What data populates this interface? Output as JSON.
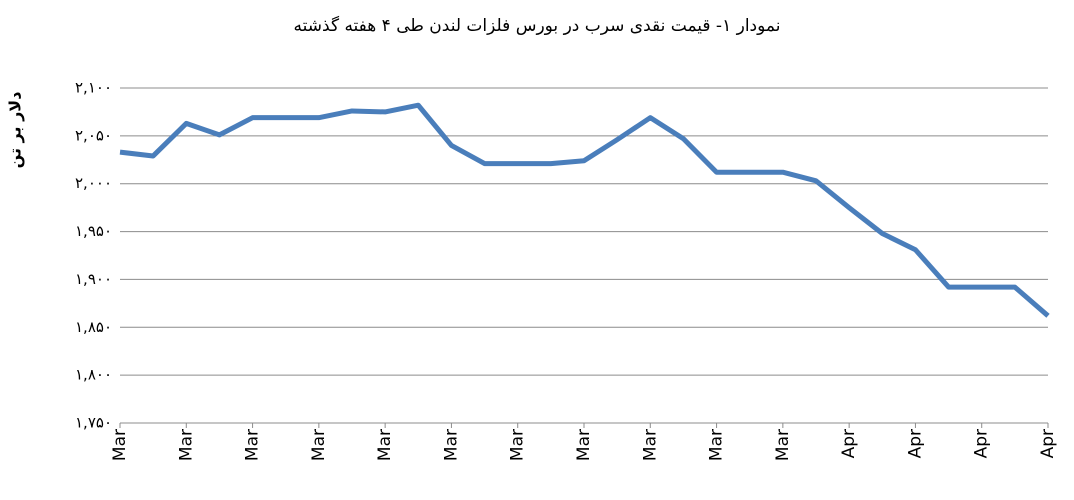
{
  "chart_data": {
    "type": "line",
    "title": "نمودار ۱- قیمت نقدی سرب  در بورس فلزات لندن طی ۴ هفته گذشته",
    "y_label": "دلار بر تن",
    "categories": [
      "Mar",
      null,
      "Mar",
      null,
      "Mar",
      null,
      "Mar",
      null,
      "Mar",
      null,
      "Mar",
      null,
      "Mar",
      null,
      "Mar",
      null,
      "Mar",
      null,
      "Mar",
      null,
      "Mar",
      null,
      "Apr",
      null,
      "Apr",
      null,
      "Apr",
      null,
      "Apr"
    ],
    "series": [
      {
        "name": "سرب",
        "color": "#4a7ebb",
        "values": [
          2033,
          2029,
          2063,
          2051,
          2069,
          2069,
          2069,
          2076,
          2075,
          2082,
          2040,
          2021,
          2021,
          2021,
          2024,
          2046,
          2069,
          2047,
          2012,
          2012,
          2012,
          2003,
          1975,
          1948,
          1931,
          1892,
          1892,
          1892,
          1862
        ]
      }
    ],
    "ylim": [
      1750,
      2100
    ],
    "yticks": [
      {
        "value": 1750,
        "label": "۱,۷۵۰"
      },
      {
        "value": 1800,
        "label": "۱,۸۰۰"
      },
      {
        "value": 1850,
        "label": "۱,۸۵۰"
      },
      {
        "value": 1900,
        "label": "۱,۹۰۰"
      },
      {
        "value": 1950,
        "label": "۱,۹۵۰"
      },
      {
        "value": 2000,
        "label": "۲,۰۰۰"
      },
      {
        "value": 2050,
        "label": "۲,۰۵۰"
      },
      {
        "value": 2100,
        "label": "۲,۱۰۰"
      }
    ],
    "grid": true
  }
}
